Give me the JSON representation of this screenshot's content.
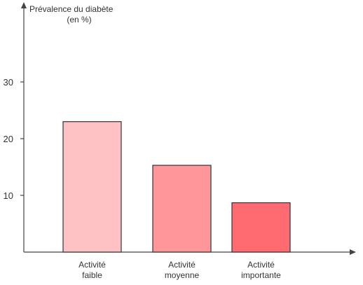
{
  "chart_data": {
    "type": "bar",
    "title": "",
    "ylabel_lines": [
      "Prévalence du diabète",
      "(en %)"
    ],
    "xlabel": "",
    "categories": [
      [
        "Activité",
        "faible"
      ],
      [
        "Activité",
        "moyenne"
      ],
      [
        "Activité",
        "importante"
      ]
    ],
    "values": [
      23,
      15.3,
      8.7
    ],
    "colors": [
      "#ffc2c4",
      "#ff9699",
      "#ff6b70"
    ],
    "ylim": [
      0,
      35
    ],
    "yticks": [
      10,
      20,
      30
    ],
    "ytick_labels": [
      "10",
      "20",
      "30"
    ],
    "grid": false,
    "legend": "none"
  }
}
